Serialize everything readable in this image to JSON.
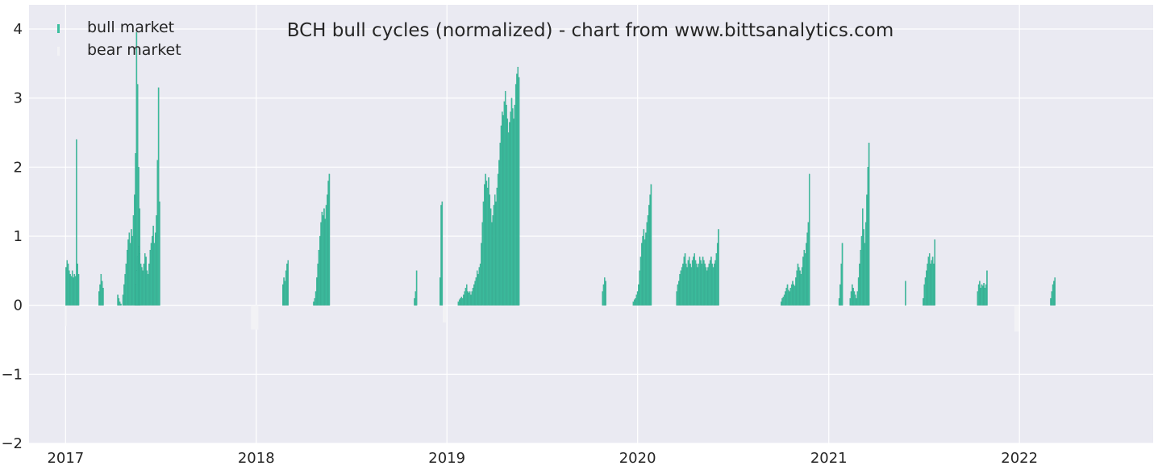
{
  "chart_data": {
    "type": "bar",
    "title": "BCH bull cycles (normalized)  - chart from www.bittsanalytics.com",
    "xlabel": "",
    "ylabel": "",
    "ylim": [
      -2,
      4.35
    ],
    "xlim": [
      "2016-10-23",
      "2022-09-14"
    ],
    "yticks": [
      -2,
      -1,
      0,
      1,
      2,
      3,
      4
    ],
    "ytick_labels": [
      "−2",
      "−1",
      "0",
      "1",
      "2",
      "3",
      "4"
    ],
    "xticks": [
      "2017-01-01",
      "2018-01-01",
      "2019-01-01",
      "2020-01-01",
      "2021-01-01",
      "2022-01-01"
    ],
    "xtick_labels": [
      "2017",
      "2018",
      "2019",
      "2020",
      "2021",
      "2022"
    ],
    "grid": true,
    "legend": {
      "placement": "top-left",
      "entries": [
        "bull market",
        "bear market"
      ]
    },
    "colors": {
      "bull": "#3dbf9f",
      "bear": "#f2f2f5",
      "background": "#eaeaf2",
      "grid": "#ffffff"
    },
    "bull_segments": [
      {
        "start": "2017-01-01",
        "values": [
          0.55,
          0.65,
          0.6,
          0.5,
          0.45,
          0.42,
          0.5,
          0.4,
          0.45,
          0.42,
          2.4,
          0.6,
          0.45
        ]
      },
      {
        "start": "2017-03-05",
        "values": [
          0.2,
          0.3,
          0.45,
          0.35,
          0.25
        ]
      },
      {
        "start": "2017-04-10",
        "values": [
          0.15,
          0.1,
          0.05,
          0.02
        ]
      },
      {
        "start": "2017-04-20",
        "values": [
          0.15,
          0.3,
          0.45,
          0.6,
          0.8,
          0.95,
          1.05,
          0.9,
          1.1,
          1.0,
          1.3,
          1.6,
          2.2,
          3.95,
          3.2,
          2.0,
          1.4
        ]
      },
      {
        "start": "2017-05-14",
        "values": [
          0.3,
          0.5,
          0.7,
          0.85,
          0.75,
          0.6,
          0.55,
          0.5,
          0.6,
          0.75,
          0.7,
          0.5,
          0.45,
          0.6,
          0.8,
          0.9,
          1.0,
          1.15,
          0.9,
          1.05,
          1.3,
          2.1,
          3.15,
          1.5
        ]
      },
      {
        "start": "2018-02-20",
        "values": [
          0.3,
          0.4,
          0.35,
          0.5,
          0.6,
          0.65
        ]
      },
      {
        "start": "2018-04-20",
        "values": [
          0.05,
          0.1,
          0.2,
          0.4,
          0.6,
          0.8,
          1.0,
          1.2,
          1.35,
          1.3,
          1.4,
          1.25,
          1.45,
          1.6,
          1.8,
          1.9
        ]
      },
      {
        "start": "2018-10-30",
        "values": [
          0.1,
          0.2,
          0.5
        ]
      },
      {
        "start": "2018-12-18",
        "values": [
          0.4,
          1.45,
          1.5
        ]
      },
      {
        "start": "2019-01-22",
        "values": [
          0.05,
          0.08,
          0.1,
          0.12,
          0.1,
          0.15,
          0.2,
          0.25,
          0.3,
          0.2,
          0.18,
          0.2,
          0.15,
          0.2,
          0.25,
          0.3,
          0.35,
          0.4,
          0.5,
          0.45,
          0.55,
          0.6,
          0.9,
          1.2,
          1.5,
          1.75,
          1.9,
          1.8,
          1.7,
          1.85,
          1.6,
          1.4,
          1.2,
          1.3,
          1.45,
          1.6,
          1.5,
          1.7,
          1.9,
          2.1,
          2.35,
          2.6,
          2.8,
          2.75,
          2.95,
          3.1,
          2.9,
          2.7,
          2.5,
          2.65,
          2.8,
          3.0,
          2.85,
          2.7,
          2.9,
          3.2,
          3.35,
          3.45,
          3.3
        ]
      },
      {
        "start": "2019-10-25",
        "values": [
          0.2,
          0.3,
          0.4,
          0.35
        ]
      },
      {
        "start": "2019-12-23",
        "values": [
          0.05,
          0.08,
          0.1,
          0.15,
          0.2,
          0.3,
          0.5,
          0.7,
          0.9,
          1.0,
          1.1,
          0.95,
          1.05,
          1.2,
          1.3,
          1.45,
          1.6,
          1.75
        ]
      },
      {
        "start": "2020-03-15",
        "values": [
          0.2,
          0.3,
          0.35,
          0.45,
          0.5,
          0.55,
          0.6,
          0.7,
          0.75,
          0.6,
          0.55,
          0.65,
          0.7,
          0.6,
          0.55,
          0.65,
          0.7,
          0.75,
          0.65,
          0.6,
          0.55,
          0.6,
          0.7,
          0.65,
          0.6,
          0.7,
          0.65,
          0.6,
          0.55,
          0.5,
          0.55,
          0.6,
          0.65,
          0.7,
          0.6,
          0.55,
          0.6,
          0.65,
          0.75,
          0.9,
          1.1
        ]
      },
      {
        "start": "2020-10-01",
        "values": [
          0.05,
          0.1,
          0.12,
          0.15,
          0.2,
          0.25,
          0.3,
          0.22,
          0.2,
          0.25,
          0.3,
          0.35,
          0.3,
          0.28,
          0.4,
          0.5,
          0.6,
          0.55,
          0.5,
          0.45,
          0.55,
          0.7,
          0.8,
          0.75,
          0.9,
          1.05,
          1.2,
          1.9
        ]
      },
      {
        "start": "2021-01-20",
        "values": [
          0.1,
          0.3,
          0.6,
          0.9
        ]
      },
      {
        "start": "2021-02-10",
        "values": [
          0.1,
          0.2,
          0.3,
          0.25,
          0.2,
          0.15,
          0.1,
          0.2,
          0.4,
          0.6,
          0.8,
          1.0,
          1.4,
          1.1,
          0.9,
          1.2,
          1.6,
          2.0,
          2.35
        ]
      },
      {
        "start": "2021-05-27",
        "values": [
          0.35
        ]
      },
      {
        "start": "2021-06-30",
        "values": [
          0.1,
          0.3,
          0.4,
          0.5,
          0.6,
          0.7,
          0.75,
          0.6,
          0.65,
          0.7,
          0.6,
          0.95
        ]
      },
      {
        "start": "2021-10-12",
        "values": [
          0.2,
          0.3,
          0.35,
          0.25,
          0.3,
          0.28,
          0.32,
          0.25,
          0.3,
          0.5
        ]
      },
      {
        "start": "2022-03-01",
        "values": [
          0.1,
          0.2,
          0.3,
          0.35,
          0.4
        ]
      }
    ],
    "bear_segments": [
      {
        "start": "2017-01-01",
        "end": "2017-01-03",
        "value": -0.3
      },
      {
        "start": "2017-12-22",
        "end": "2018-01-05",
        "value": -0.35
      },
      {
        "start": "2018-12-24",
        "end": "2018-12-30",
        "value": -0.25
      },
      {
        "start": "2021-12-22",
        "end": "2021-12-31",
        "value": -0.38
      }
    ]
  }
}
